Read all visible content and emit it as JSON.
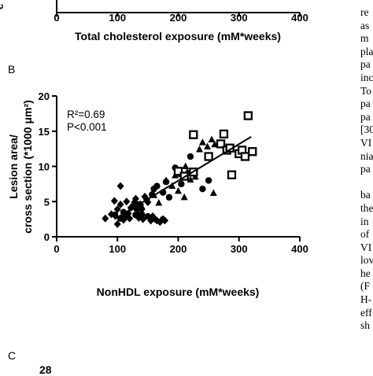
{
  "top_fragment": {
    "y_label_partial": "c",
    "ticks": [
      "0",
      "100",
      "200",
      "300",
      "400"
    ],
    "xlabel": "Total cholesterol exposure (mM*weeks)"
  },
  "panel_b_letter": "B",
  "panel_c_letter": "C",
  "panel_c_fragment": "28",
  "body_text_lines": [
    "re",
    "as",
    "m",
    "pla",
    "pa",
    "inc",
    "To",
    "pa",
    "pa",
    "[30",
    "VI",
    "nia",
    "pa",
    "",
    "ba",
    "the",
    "in",
    "of",
    "VI",
    "lov",
    "he",
    "(F",
    "H-",
    "eff",
    "sh"
  ],
  "chart_data": {
    "type": "scatter",
    "xlabel": "NonHDL exposure (mM*weeks)",
    "ylabel_line1": "Lesion area/",
    "ylabel_line2": "cross section (*1000 μm²)",
    "xlim": [
      0,
      400
    ],
    "ylim": [
      0,
      20
    ],
    "xticks": [
      "0",
      "100",
      "200",
      "300",
      "400"
    ],
    "yticks": [
      "0",
      "5",
      "10",
      "15",
      "20"
    ],
    "annotation_r2": "R²=0.69",
    "annotation_p": "P<0.001",
    "grid": false,
    "regression": {
      "x": [
        95,
        320
      ],
      "y": [
        2.5,
        14.2
      ]
    },
    "series": [
      {
        "marker": "diamond",
        "points": [
          [
            80,
            2.6
          ],
          [
            90,
            3.2
          ],
          [
            95,
            5.1
          ],
          [
            100,
            3.9
          ],
          [
            100,
            1.8
          ],
          [
            105,
            7.2
          ],
          [
            105,
            4.6
          ],
          [
            110,
            2.4
          ],
          [
            113,
            2.9
          ],
          [
            115,
            5.0
          ],
          [
            118,
            3.3
          ],
          [
            120,
            2.6
          ],
          [
            122,
            4.1
          ],
          [
            125,
            4.3
          ],
          [
            128,
            4.9
          ],
          [
            130,
            5.4
          ],
          [
            132,
            3.8
          ],
          [
            135,
            2.7
          ],
          [
            138,
            4.6
          ],
          [
            140,
            3.9
          ],
          [
            142,
            2.5
          ],
          [
            145,
            5.7
          ],
          [
            148,
            5.3
          ],
          [
            150,
            4.9
          ],
          [
            155,
            2.3
          ],
          [
            158,
            2.9
          ],
          [
            162,
            2.5
          ],
          [
            165,
            2.3
          ],
          [
            170,
            2.1
          ],
          [
            175,
            2.5
          ],
          [
            178,
            2.3
          ]
        ]
      },
      {
        "marker": "circle",
        "points": [
          [
            96,
            3.1
          ],
          [
            105,
            2.6
          ],
          [
            110,
            3.5
          ],
          [
            125,
            4.3
          ],
          [
            130,
            3.1
          ],
          [
            135,
            4.6
          ],
          [
            140,
            3.2
          ],
          [
            150,
            2.9
          ],
          [
            157,
            6.0
          ],
          [
            160,
            6.8
          ],
          [
            165,
            7.2
          ],
          [
            175,
            6.3
          ],
          [
            180,
            7.8
          ],
          [
            185,
            5.6
          ],
          [
            195,
            9.8
          ],
          [
            205,
            7.5
          ],
          [
            220,
            11.4
          ],
          [
            240,
            6.8
          ],
          [
            250,
            8.0
          ]
        ]
      },
      {
        "marker": "triangle",
        "points": [
          [
            135,
            3.2
          ],
          [
            140,
            4.3
          ],
          [
            160,
            5.9
          ],
          [
            168,
            4.8
          ],
          [
            172,
            2.4
          ],
          [
            180,
            8.0
          ],
          [
            190,
            7.2
          ],
          [
            195,
            8.7
          ],
          [
            200,
            6.5
          ],
          [
            205,
            8.9
          ],
          [
            210,
            5.6
          ],
          [
            212,
            10.0
          ],
          [
            215,
            9.2
          ],
          [
            220,
            8.1
          ],
          [
            228,
            8.5
          ],
          [
            235,
            12.4
          ],
          [
            240,
            13.4
          ],
          [
            248,
            12.8
          ],
          [
            255,
            13.8
          ],
          [
            258,
            6.2
          ],
          [
            260,
            13.1
          ]
        ]
      },
      {
        "marker": "square",
        "points": [
          [
            200,
            9.3
          ],
          [
            210,
            8.6
          ],
          [
            225,
            9.2
          ],
          [
            225,
            14.5
          ],
          [
            250,
            11.4
          ],
          [
            270,
            13.2
          ],
          [
            275,
            14.6
          ],
          [
            280,
            12.3
          ],
          [
            285,
            12.6
          ],
          [
            288,
            8.8
          ],
          [
            300,
            11.8
          ],
          [
            305,
            12.3
          ],
          [
            310,
            11.4
          ],
          [
            315,
            17.2
          ],
          [
            322,
            12.1
          ]
        ]
      }
    ]
  }
}
